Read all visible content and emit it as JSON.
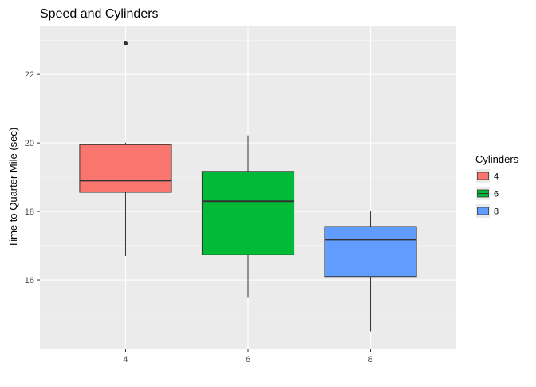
{
  "chart_data": {
    "type": "box",
    "title": "Speed and Cylinders",
    "xlabel": "",
    "ylabel": "Time to Quarter Mile (sec)",
    "categories": [
      "4",
      "6",
      "8"
    ],
    "ylim": [
      14.0,
      23.4
    ],
    "y_ticks": [
      16,
      18,
      20,
      22
    ],
    "y_minor_ticks": [
      15,
      17,
      19,
      21,
      23
    ],
    "grid": true,
    "legend": {
      "title": "Cylinders",
      "position": "right",
      "entries": [
        "4",
        "6",
        "8"
      ]
    },
    "boxes": [
      {
        "category": "4",
        "min": 16.7,
        "q1": 18.56,
        "median": 18.9,
        "q3": 19.95,
        "max": 20.01,
        "outliers": [
          22.9
        ],
        "color": "#F8766D"
      },
      {
        "category": "6",
        "min": 15.5,
        "q1": 16.74,
        "median": 18.3,
        "q3": 19.17,
        "max": 20.22,
        "outliers": [],
        "color": "#00BA38"
      },
      {
        "category": "8",
        "min": 14.5,
        "q1": 16.1,
        "median": 17.18,
        "q3": 17.56,
        "max": 18.0,
        "outliers": [],
        "color": "#619CFF"
      }
    ]
  },
  "colors": {
    "panel_background": "#EBEBEB",
    "grid_major": "#FFFFFF",
    "box_outline": "#333333"
  }
}
